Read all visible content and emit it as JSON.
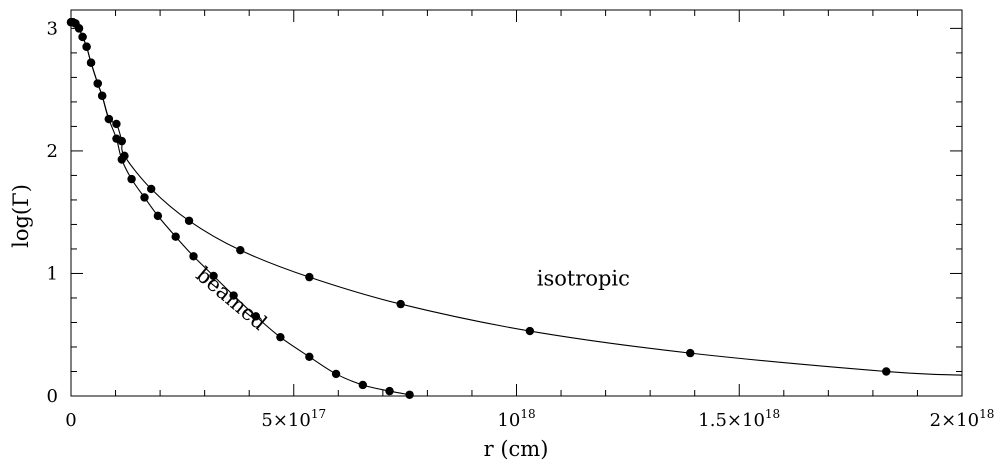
{
  "chart_data": {
    "type": "line",
    "xlabel": "r (cm)",
    "ylabel": "log(Γ)",
    "xlim": [
      0,
      2e+18
    ],
    "ylim": [
      0,
      3.15
    ],
    "x_ticks": [
      {
        "value": 0,
        "label": "0"
      },
      {
        "value": 5e+17,
        "label": "5×10",
        "sup": "17"
      },
      {
        "value": 1e+18,
        "label": "10",
        "sup": "18"
      },
      {
        "value": 1.5e+18,
        "label": "1.5×10",
        "sup": "18"
      },
      {
        "value": 2e+18,
        "label": "2×10",
        "sup": "18"
      }
    ],
    "y_ticks": [
      {
        "value": 0,
        "label": "0"
      },
      {
        "value": 1,
        "label": "1"
      },
      {
        "value": 2,
        "label": "2"
      },
      {
        "value": 3,
        "label": "3"
      }
    ],
    "grid": false,
    "annotations": [
      {
        "text": "isotropic",
        "x": 1.15e+18,
        "y": 0.9,
        "rotation": 0
      },
      {
        "text": "beamed",
        "x": 3.5e+17,
        "y": 0.75,
        "rotation": 40
      }
    ],
    "series": [
      {
        "x": [
          0,
          4000000000000000.0,
          1e+16,
          1.8e+16,
          2.6e+16,
          3.5e+16,
          4.5e+16,
          6e+16,
          7e+16,
          8.5e+16,
          1.02e+17,
          1.14e+17,
          1.2e+17,
          1.8e+17,
          2.65e+17,
          3.8e+17,
          5.35e+17,
          7.4e+17,
          1.03e+18,
          1.39e+18,
          1.83e+18,
          2e+18
        ],
        "y": [
          3.05,
          3.05,
          3.04,
          3.0,
          2.93,
          2.85,
          2.72,
          2.55,
          2.45,
          2.26,
          2.22,
          2.08,
          1.96,
          1.69,
          1.43,
          1.19,
          0.97,
          0.75,
          0.53,
          0.35,
          0.2,
          0.17
        ]
      },
      {
        "x": [
          0,
          4000000000000000.0,
          1e+16,
          1.8e+16,
          2.6e+16,
          3.5e+16,
          4.5e+16,
          6e+16,
          7e+16,
          8.5e+16,
          1.02e+17,
          1.14e+17,
          1.36e+17,
          1.65e+17,
          1.95e+17,
          2.35e+17,
          2.75e+17,
          3.2e+17,
          3.65e+17,
          4.15e+17,
          4.7e+17,
          5.35e+17,
          5.95e+17,
          6.55e+17,
          7.15e+17,
          7.6e+17
        ],
        "y": [
          3.05,
          3.05,
          3.04,
          3.0,
          2.93,
          2.85,
          2.72,
          2.55,
          2.45,
          2.26,
          2.1,
          1.93,
          1.77,
          1.62,
          1.47,
          1.3,
          1.14,
          0.98,
          0.82,
          0.65,
          0.48,
          0.32,
          0.18,
          0.09,
          0.04,
          0.01
        ]
      }
    ]
  }
}
